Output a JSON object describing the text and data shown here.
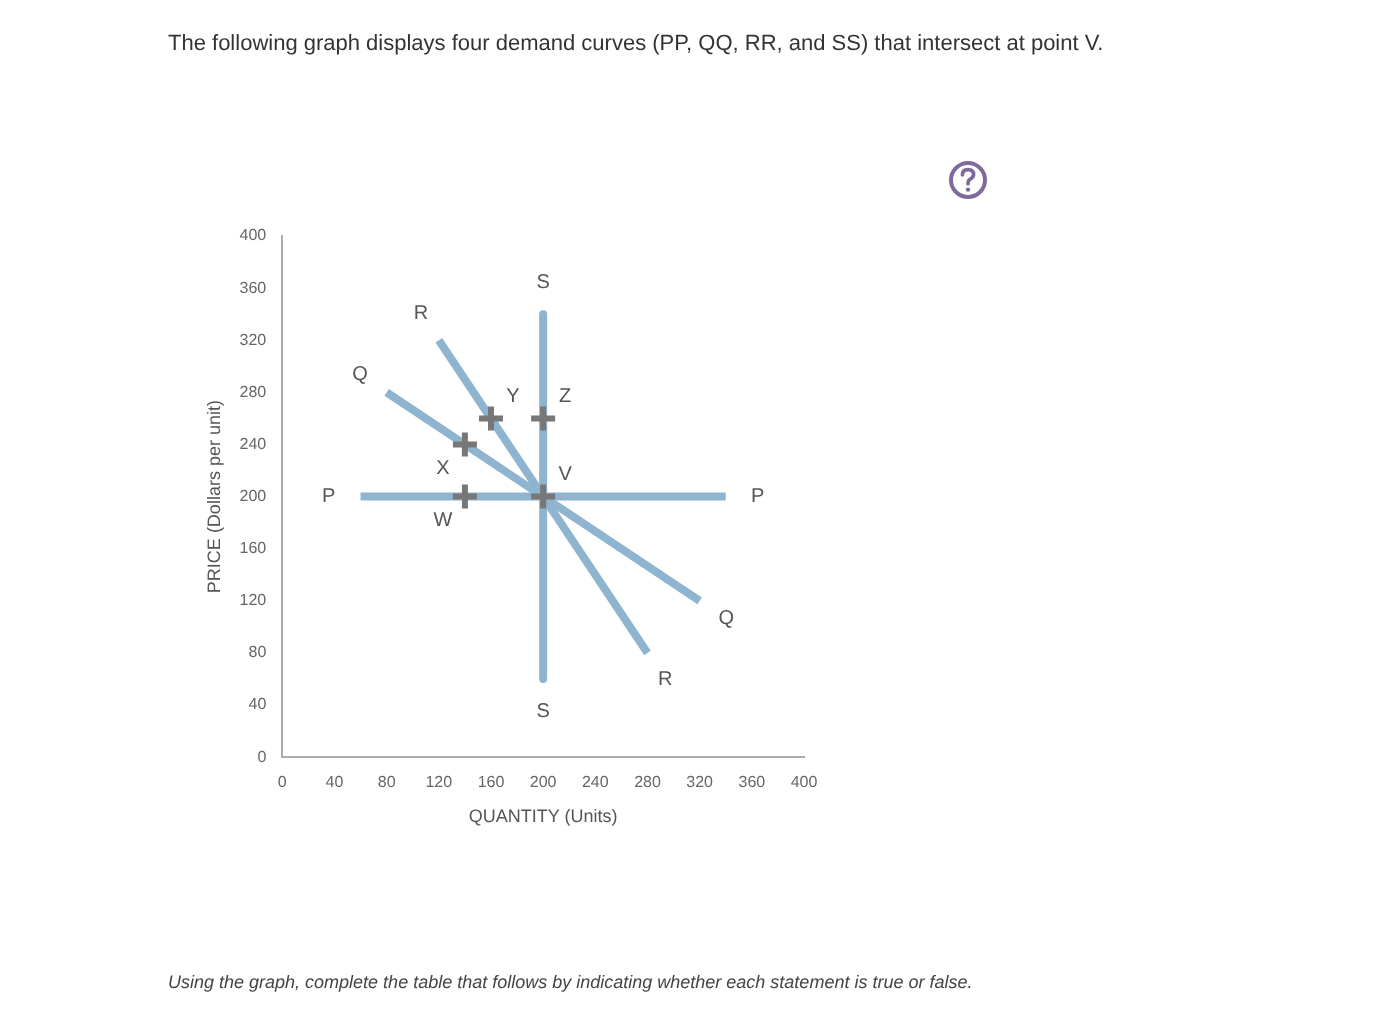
{
  "chart_data": {
    "type": "line",
    "title": "The following graph displays four demand curves (PP, QQ, RR, and SS) that intersect at point V.",
    "xlabel": "QUANTITY (Units)",
    "ylabel": "PRICE (Dollars per unit)",
    "xlim": [
      0,
      400
    ],
    "xticks": [
      0,
      40,
      80,
      120,
      160,
      200,
      240,
      280,
      320,
      360,
      400
    ],
    "ylim": [
      0,
      400
    ],
    "yticks": [
      0,
      40,
      80,
      120,
      160,
      200,
      240,
      280,
      320,
      360,
      400
    ],
    "grid": false,
    "legend": false,
    "marker": "none",
    "series": [
      {
        "name": "P",
        "color": "#8fb4d0",
        "x": [
          60,
          340
        ],
        "values": [
          200,
          200
        ]
      },
      {
        "name": "Q",
        "color": "#8fb4d0",
        "x": [
          80,
          320
        ],
        "values": [
          280,
          120
        ]
      },
      {
        "name": "R",
        "color": "#8fb4d0",
        "x": [
          120,
          280
        ],
        "values": [
          320,
          80
        ]
      },
      {
        "name": "S",
        "color": "#8fb4d0",
        "x": [
          200,
          200
        ],
        "values": [
          340,
          60
        ]
      },
      {
        "type": "scatter",
        "marker": "cross",
        "color": "#777777",
        "x": [
          140,
          140,
          160,
          200,
          200
        ],
        "values": [
          200,
          240,
          260,
          260,
          200
        ]
      }
    ],
    "annotations": [
      {
        "text": "W",
        "x": 140,
        "y": 200
      },
      {
        "text": "X",
        "x": 140,
        "y": 240
      },
      {
        "text": "Y",
        "x": 160,
        "y": 260
      },
      {
        "text": "Z",
        "x": 200,
        "y": 260
      },
      {
        "text": "V",
        "x": 200,
        "y": 200
      },
      "Using the graph, complete the table that follows by indicating whether each statement is true or false."
    ]
  }
}
